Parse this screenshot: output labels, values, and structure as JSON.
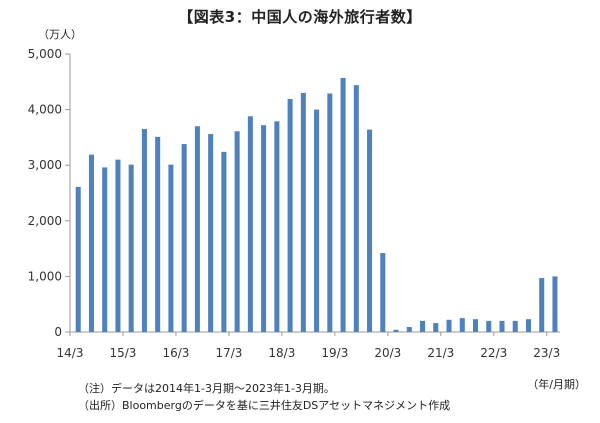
{
  "title": "【図表3：中国人の海外旅行者数】",
  "y_unit": "（万人）",
  "x_unit": "（年/月期）",
  "notes": [
    "（注）データは2014年1-3月期～2023年1-3月期。",
    "（出所）Bloombergのデータを基に三井住友DSアセットマネジメント作成"
  ],
  "colors": {
    "bar": "#4f81bd",
    "axis": "#999999",
    "grid": "#d9d9d9"
  },
  "chart_data": {
    "type": "bar",
    "title": "【図表3：中国人の海外旅行者数】",
    "ylabel": "（万人）",
    "xlabel": "（年/月期）",
    "ylim": [
      0,
      5000
    ],
    "yticks": [
      0,
      1000,
      2000,
      3000,
      4000,
      5000
    ],
    "ytick_labels": [
      "0",
      "1,000",
      "2,000",
      "3,000",
      "4,000",
      "5,000"
    ],
    "xtick_labels": [
      "14/3",
      "15/3",
      "16/3",
      "17/3",
      "18/3",
      "19/3",
      "20/3",
      "21/3",
      "22/3",
      "23/3"
    ],
    "categories": [
      "14/3",
      "14/6",
      "14/9",
      "14/12",
      "15/3",
      "15/6",
      "15/9",
      "15/12",
      "16/3",
      "16/6",
      "16/9",
      "16/12",
      "17/3",
      "17/6",
      "17/9",
      "17/12",
      "18/3",
      "18/6",
      "18/9",
      "18/12",
      "19/3",
      "19/6",
      "19/9",
      "19/12",
      "20/3",
      "20/6",
      "20/9",
      "20/12",
      "21/3",
      "21/6",
      "21/9",
      "21/12",
      "22/3",
      "22/6",
      "22/9",
      "22/12",
      "23/3"
    ],
    "values": [
      2610,
      3190,
      2960,
      3100,
      3010,
      3650,
      3510,
      3010,
      3380,
      3700,
      3560,
      3240,
      3610,
      3880,
      3720,
      3790,
      4190,
      4300,
      4000,
      4290,
      4570,
      4440,
      3640,
      1420,
      40,
      90,
      200,
      160,
      220,
      250,
      230,
      200,
      200,
      200,
      230,
      970,
      1000
    ],
    "grid": false
  }
}
